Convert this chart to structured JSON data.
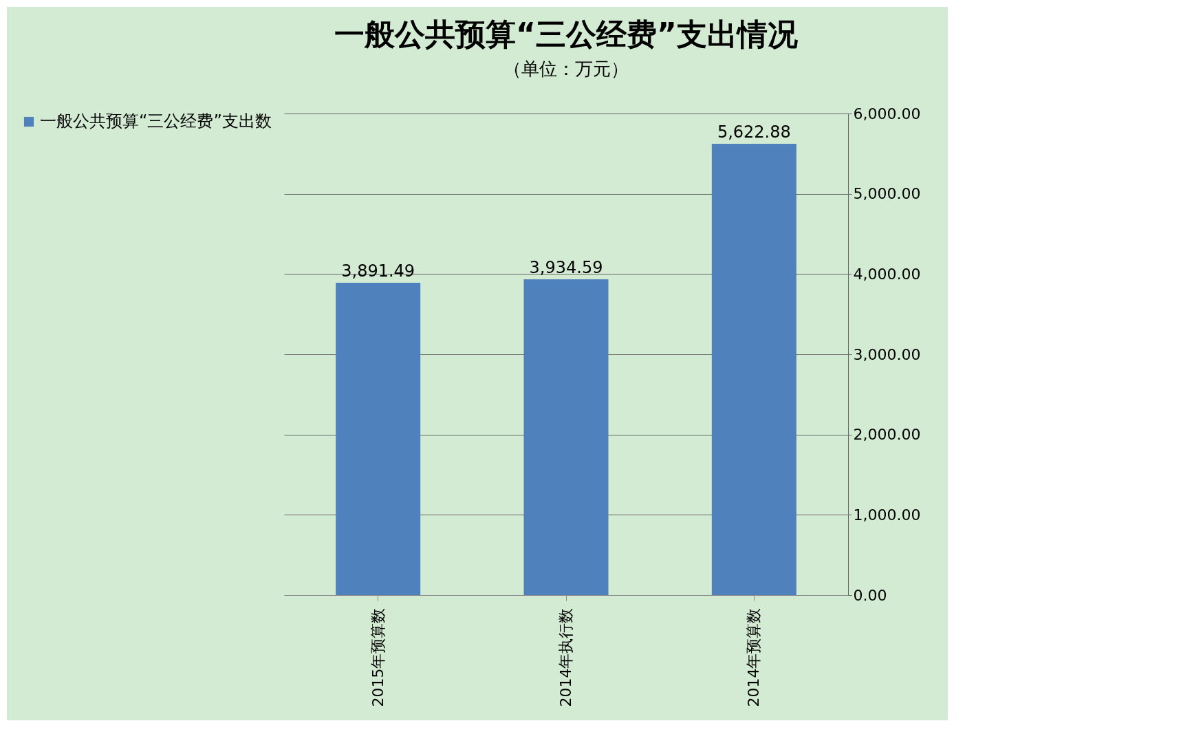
{
  "chart_data": {
    "type": "bar",
    "title": "一般公共预算“三公经费”支出情况",
    "subtitle": "（单位：万元）",
    "categories": [
      "2015年预算数",
      "2014年执行数",
      "2014年预算数"
    ],
    "series": [
      {
        "name": "一般公共预算“三公经费”支出数",
        "color": "#4f81bd",
        "values": [
          3891.49,
          3934.59,
          5622.88
        ],
        "value_labels": [
          "3,891.49",
          "3,934.59",
          "5,622.88"
        ]
      }
    ],
    "ylim": [
      0,
      6000
    ],
    "yticks": [
      {
        "value": 0,
        "label": "0.00"
      },
      {
        "value": 1000,
        "label": "1,000.00"
      },
      {
        "value": 2000,
        "label": "2,000.00"
      },
      {
        "value": 3000,
        "label": "3,000.00"
      },
      {
        "value": 4000,
        "label": "4,000.00"
      },
      {
        "value": 5000,
        "label": "5,000.00"
      },
      {
        "value": 6000,
        "label": "6,000.00"
      }
    ],
    "grid": "y",
    "legend": "left"
  }
}
